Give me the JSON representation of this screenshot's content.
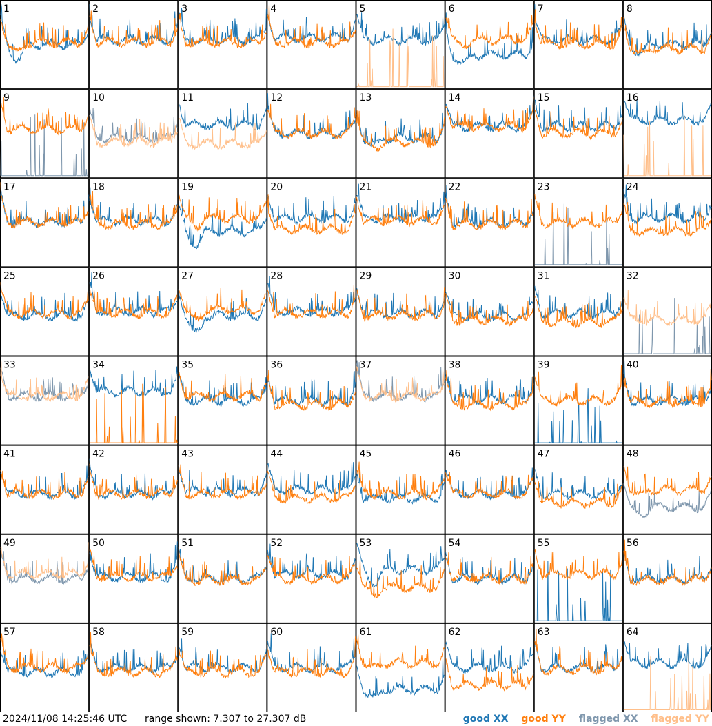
{
  "chart_data": {
    "type": "line",
    "grid": {
      "rows": 8,
      "cols": 8
    },
    "panels": [
      {
        "n": "1",
        "xx": "good",
        "yy": "good",
        "xxLevel": 0.5,
        "yyLevel": 0.48,
        "dip": 0.18
      },
      {
        "n": "2",
        "xx": "good",
        "yy": "good",
        "xxLevel": 0.45,
        "yyLevel": 0.47,
        "dip": 0
      },
      {
        "n": "3",
        "xx": "good",
        "yy": "good",
        "xxLevel": 0.45,
        "yyLevel": 0.48,
        "dip": 0
      },
      {
        "n": "4",
        "xx": "good",
        "yy": "good",
        "xxLevel": 0.42,
        "yyLevel": 0.48,
        "dip": 0
      },
      {
        "n": "5",
        "xx": "good",
        "yy": "flagged",
        "xxLevel": 0.45,
        "yyLevel": 0.95,
        "dip": 0
      },
      {
        "n": "6",
        "xx": "good",
        "yy": "good",
        "xxLevel": 0.62,
        "yyLevel": 0.45,
        "dip": 0.1
      },
      {
        "n": "7",
        "xx": "good",
        "yy": "good",
        "xxLevel": 0.45,
        "yyLevel": 0.5,
        "dip": 0
      },
      {
        "n": "8",
        "xx": "good",
        "yy": "good",
        "xxLevel": 0.5,
        "yyLevel": 0.55,
        "dip": 0.1
      },
      {
        "n": "9",
        "xx": "flagged",
        "yy": "good",
        "xxLevel": 0.95,
        "yyLevel": 0.45,
        "dip": 0
      },
      {
        "n": "10",
        "xx": "flagged",
        "yy": "flagged",
        "xxLevel": 0.55,
        "yyLevel": 0.6,
        "dip": 0
      },
      {
        "n": "11",
        "xx": "good",
        "yy": "flagged",
        "xxLevel": 0.4,
        "yyLevel": 0.62,
        "dip": 0
      },
      {
        "n": "12",
        "xx": "good",
        "yy": "good",
        "xxLevel": 0.5,
        "yyLevel": 0.5,
        "dip": 0
      },
      {
        "n": "13",
        "xx": "good",
        "yy": "good",
        "xxLevel": 0.55,
        "yyLevel": 0.6,
        "dip": 0.1
      },
      {
        "n": "14",
        "xx": "good",
        "yy": "good",
        "xxLevel": 0.42,
        "yyLevel": 0.42,
        "dip": 0
      },
      {
        "n": "15",
        "xx": "good",
        "yy": "good",
        "xxLevel": 0.42,
        "yyLevel": 0.5,
        "dip": 0
      },
      {
        "n": "16",
        "xx": "good",
        "yy": "flagged",
        "xxLevel": 0.35,
        "yyLevel": 0.95,
        "dip": 0
      },
      {
        "n": "17",
        "xx": "good",
        "yy": "good",
        "xxLevel": 0.5,
        "yyLevel": 0.5,
        "dip": 0
      },
      {
        "n": "18",
        "xx": "good",
        "yy": "good",
        "xxLevel": 0.48,
        "yyLevel": 0.52,
        "dip": 0
      },
      {
        "n": "19",
        "xx": "good",
        "yy": "good",
        "xxLevel": 0.6,
        "yyLevel": 0.45,
        "dip": 0.15
      },
      {
        "n": "20",
        "xx": "good",
        "yy": "good",
        "xxLevel": 0.45,
        "yyLevel": 0.58,
        "dip": 0
      },
      {
        "n": "21",
        "xx": "good",
        "yy": "good",
        "xxLevel": 0.45,
        "yyLevel": 0.48,
        "dip": 0
      },
      {
        "n": "22",
        "xx": "good",
        "yy": "good",
        "xxLevel": 0.5,
        "yyLevel": 0.52,
        "dip": 0
      },
      {
        "n": "23",
        "xx": "flagged",
        "yy": "good",
        "xxLevel": 0.95,
        "yyLevel": 0.5,
        "dip": 0
      },
      {
        "n": "24",
        "xx": "good",
        "yy": "good",
        "xxLevel": 0.45,
        "yyLevel": 0.6,
        "dip": 0
      },
      {
        "n": "25",
        "xx": "good",
        "yy": "good",
        "xxLevel": 0.55,
        "yyLevel": 0.52,
        "dip": 0
      },
      {
        "n": "26",
        "xx": "good",
        "yy": "good",
        "xxLevel": 0.5,
        "yyLevel": 0.52,
        "dip": 0
      },
      {
        "n": "27",
        "xx": "good",
        "yy": "good",
        "xxLevel": 0.55,
        "yyLevel": 0.48,
        "dip": 0.2
      },
      {
        "n": "28",
        "xx": "good",
        "yy": "good",
        "xxLevel": 0.5,
        "yyLevel": 0.52,
        "dip": 0
      },
      {
        "n": "29",
        "xx": "good",
        "yy": "good",
        "xxLevel": 0.52,
        "yyLevel": 0.55,
        "dip": 0
      },
      {
        "n": "30",
        "xx": "good",
        "yy": "good",
        "xxLevel": 0.55,
        "yyLevel": 0.6,
        "dip": 0
      },
      {
        "n": "31",
        "xx": "good",
        "yy": "good",
        "xxLevel": 0.52,
        "yyLevel": 0.62,
        "dip": 0
      },
      {
        "n": "32",
        "xx": "flagged",
        "yy": "flagged",
        "xxLevel": 0.95,
        "yyLevel": 0.6,
        "dip": 0
      },
      {
        "n": "33",
        "xx": "flagged",
        "yy": "flagged",
        "xxLevel": 0.45,
        "yyLevel": 0.45,
        "dip": 0
      },
      {
        "n": "34",
        "xx": "good",
        "yy": "good",
        "xxLevel": 0.4,
        "yyLevel": 0.95,
        "dip": 0
      },
      {
        "n": "35",
        "xx": "good",
        "yy": "good",
        "xxLevel": 0.5,
        "yyLevel": 0.45,
        "dip": 0
      },
      {
        "n": "36",
        "xx": "good",
        "yy": "good",
        "xxLevel": 0.5,
        "yyLevel": 0.55,
        "dip": 0
      },
      {
        "n": "37",
        "xx": "flagged",
        "yy": "flagged",
        "xxLevel": 0.45,
        "yyLevel": 0.45,
        "dip": 0
      },
      {
        "n": "38",
        "xx": "good",
        "yy": "good",
        "xxLevel": 0.48,
        "yyLevel": 0.55,
        "dip": 0
      },
      {
        "n": "39",
        "xx": "good",
        "yy": "good",
        "xxLevel": 0.95,
        "yyLevel": 0.5,
        "dip": 0
      },
      {
        "n": "40",
        "xx": "good",
        "yy": "good",
        "xxLevel": 0.5,
        "yyLevel": 0.52,
        "dip": 0
      },
      {
        "n": "41",
        "xx": "good",
        "yy": "good",
        "xxLevel": 0.55,
        "yyLevel": 0.55,
        "dip": 0
      },
      {
        "n": "42",
        "xx": "good",
        "yy": "good",
        "xxLevel": 0.55,
        "yyLevel": 0.55,
        "dip": 0
      },
      {
        "n": "43",
        "xx": "good",
        "yy": "good",
        "xxLevel": 0.52,
        "yyLevel": 0.55,
        "dip": 0
      },
      {
        "n": "44",
        "xx": "good",
        "yy": "good",
        "xxLevel": 0.5,
        "yyLevel": 0.6,
        "dip": 0
      },
      {
        "n": "45",
        "xx": "good",
        "yy": "good",
        "xxLevel": 0.6,
        "yyLevel": 0.55,
        "dip": 0
      },
      {
        "n": "46",
        "xx": "good",
        "yy": "good",
        "xxLevel": 0.55,
        "yyLevel": 0.55,
        "dip": 0
      },
      {
        "n": "47",
        "xx": "good",
        "yy": "good",
        "xxLevel": 0.55,
        "yyLevel": 0.65,
        "dip": 0
      },
      {
        "n": "48",
        "xx": "flagged",
        "yy": "good",
        "xxLevel": 0.7,
        "yyLevel": 0.5,
        "dip": 0.1
      },
      {
        "n": "49",
        "xx": "flagged",
        "yy": "flagged",
        "xxLevel": 0.5,
        "yyLevel": 0.45,
        "dip": 0
      },
      {
        "n": "50",
        "xx": "good",
        "yy": "good",
        "xxLevel": 0.48,
        "yyLevel": 0.48,
        "dip": 0
      },
      {
        "n": "51",
        "xx": "good",
        "yy": "good",
        "xxLevel": 0.5,
        "yyLevel": 0.52,
        "dip": 0
      },
      {
        "n": "52",
        "xx": "good",
        "yy": "good",
        "xxLevel": 0.45,
        "yyLevel": 0.5,
        "dip": 0
      },
      {
        "n": "53",
        "xx": "good",
        "yy": "good",
        "xxLevel": 0.4,
        "yyLevel": 0.6,
        "dip": 0.15
      },
      {
        "n": "54",
        "xx": "good",
        "yy": "good",
        "xxLevel": 0.5,
        "yyLevel": 0.5,
        "dip": 0
      },
      {
        "n": "55",
        "xx": "good",
        "yy": "good",
        "xxLevel": 0.95,
        "yyLevel": 0.45,
        "dip": 0
      },
      {
        "n": "56",
        "xx": "good",
        "yy": "good",
        "xxLevel": 0.5,
        "yyLevel": 0.52,
        "dip": 0
      },
      {
        "n": "57",
        "xx": "good",
        "yy": "good",
        "xxLevel": 0.55,
        "yyLevel": 0.5,
        "dip": 0
      },
      {
        "n": "58",
        "xx": "good",
        "yy": "good",
        "xxLevel": 0.5,
        "yyLevel": 0.55,
        "dip": 0
      },
      {
        "n": "59",
        "xx": "good",
        "yy": "good",
        "xxLevel": 0.5,
        "yyLevel": 0.55,
        "dip": 0
      },
      {
        "n": "60",
        "xx": "good",
        "yy": "good",
        "xxLevel": 0.5,
        "yyLevel": 0.55,
        "dip": 0
      },
      {
        "n": "61",
        "xx": "good",
        "yy": "good",
        "xxLevel": 0.75,
        "yyLevel": 0.45,
        "dip": 0.1
      },
      {
        "n": "62",
        "xx": "good",
        "yy": "good",
        "xxLevel": 0.5,
        "yyLevel": 0.7,
        "dip": 0
      },
      {
        "n": "63",
        "xx": "good",
        "yy": "good",
        "xxLevel": 0.5,
        "yyLevel": 0.52,
        "dip": 0
      },
      {
        "n": "64",
        "xx": "good",
        "yy": "flagged",
        "xxLevel": 0.45,
        "yyLevel": 0.95,
        "dip": 0
      }
    ],
    "legend": [
      {
        "label": "good XX",
        "color": "#1f77b4"
      },
      {
        "label": "good YY",
        "color": "#ff7f0e"
      },
      {
        "label": "flagged XX",
        "color": "#7f97ad"
      },
      {
        "label": "flagged YY",
        "color": "#ffbf8a"
      }
    ]
  },
  "footer": {
    "timestamp": "2024/11/08 14:25:46 UTC",
    "range": "range shown: 7.307 to 27.307 dB"
  }
}
